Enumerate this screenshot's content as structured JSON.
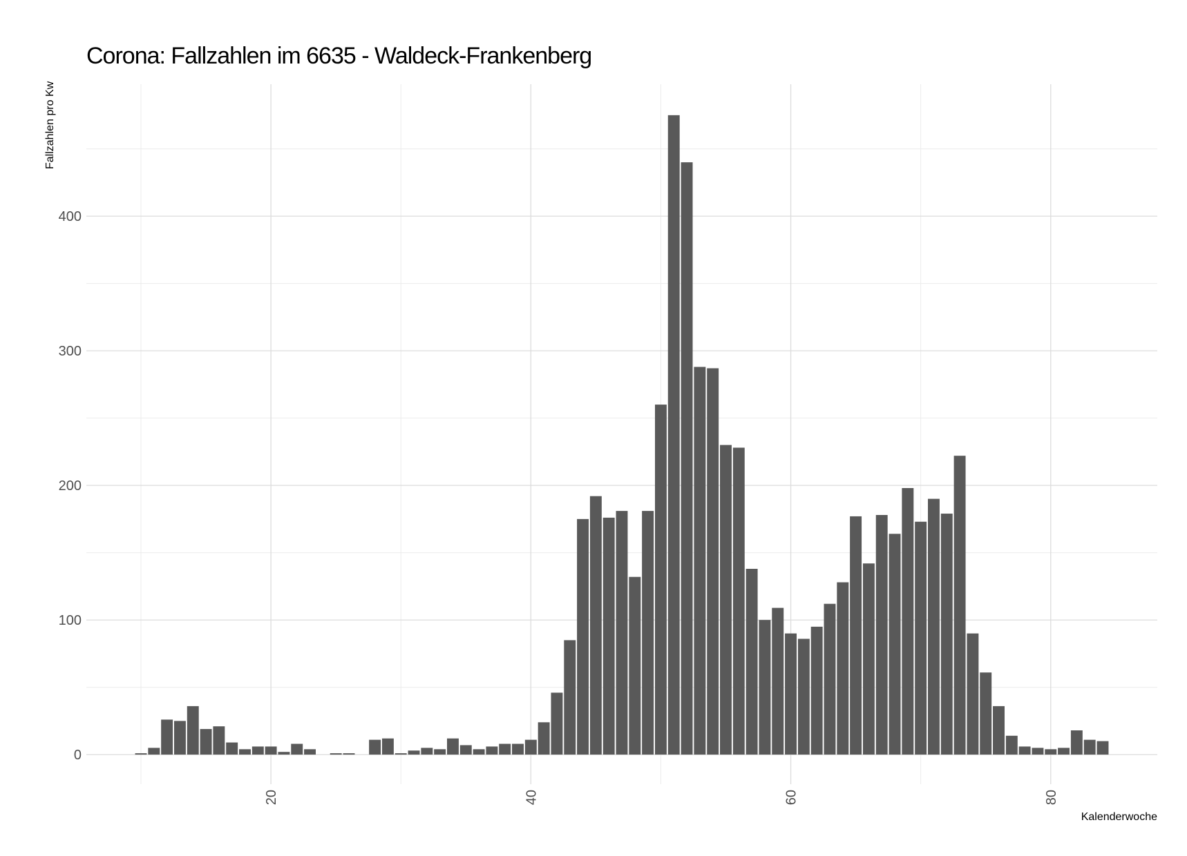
{
  "chart_data": {
    "type": "bar",
    "title": "Corona: Fallzahlen im 6635 - Waldeck-Frankenberg",
    "x_label": "Kalenderwoche",
    "y_label": "Fallzahlen pro Kw",
    "x": [
      10,
      11,
      12,
      13,
      14,
      15,
      16,
      17,
      18,
      19,
      20,
      21,
      22,
      23,
      24,
      25,
      26,
      27,
      28,
      29,
      30,
      31,
      32,
      33,
      34,
      35,
      36,
      37,
      38,
      39,
      40,
      41,
      42,
      43,
      44,
      45,
      46,
      47,
      48,
      49,
      50,
      51,
      52,
      53,
      54,
      55,
      56,
      57,
      58,
      59,
      60,
      61,
      62,
      63,
      64,
      65,
      66,
      67,
      68,
      69,
      70,
      71,
      72,
      73,
      74,
      75,
      76,
      77,
      78,
      79,
      80,
      81,
      82,
      83,
      84
    ],
    "values": [
      1,
      5,
      26,
      25,
      36,
      19,
      21,
      9,
      4,
      6,
      6,
      2,
      8,
      4,
      0,
      1,
      1,
      0,
      11,
      12,
      1,
      3,
      5,
      4,
      12,
      7,
      4,
      6,
      8,
      8,
      11,
      24,
      46,
      85,
      175,
      192,
      176,
      181,
      132,
      181,
      260,
      475,
      440,
      288,
      287,
      230,
      228,
      138,
      100,
      109,
      90,
      86,
      95,
      112,
      128,
      177,
      142,
      178,
      164,
      198,
      173,
      190,
      179,
      222,
      90,
      61,
      36,
      14,
      6,
      5,
      4,
      5,
      18,
      11,
      10
    ],
    "color": "#595959",
    "xlim": [
      5.8,
      88.2
    ],
    "xticks": [
      20,
      40,
      60,
      80
    ],
    "ylim": [
      -22,
      498
    ],
    "yticks": [
      0,
      100,
      200,
      300,
      400
    ],
    "grid": true
  }
}
